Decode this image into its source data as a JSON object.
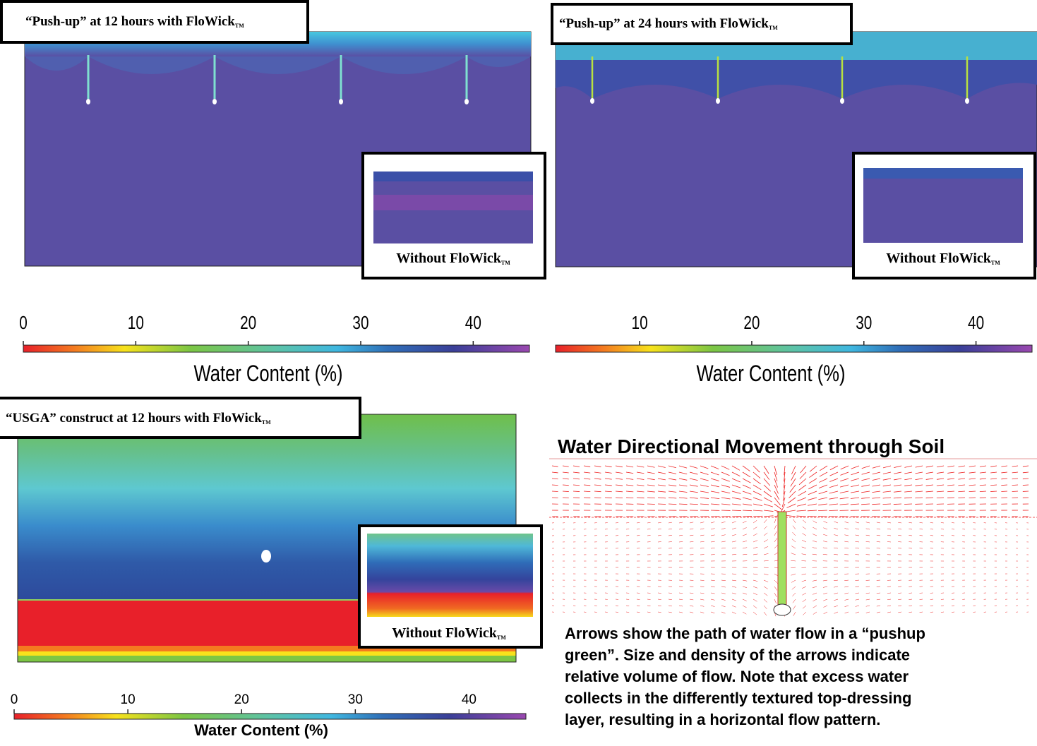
{
  "panels": [
    {
      "title": "“Push-up” at 12 hours with FloWick",
      "title_mark": "TM",
      "inset_label": "Without FloWick",
      "inset_mark": "TM"
    },
    {
      "title": "“Push-up” at 24 hours with FloWick",
      "title_mark": "TM",
      "inset_label": "Without FloWick",
      "inset_mark": "TM"
    },
    {
      "title": "“USGA” construct at 12 hours with FloWick",
      "title_mark": "TM",
      "inset_label": "Without FloWick",
      "inset_mark": "TM"
    }
  ],
  "colorbars": [
    {
      "ticks": [
        0,
        10,
        20,
        30,
        40
      ],
      "lim": [
        0,
        45
      ],
      "label": "Water Content (%)"
    },
    {
      "ticks": [
        10,
        20,
        30,
        40
      ],
      "lim": [
        2.5,
        45
      ],
      "label": "Water Content (%)"
    },
    {
      "ticks": [
        0,
        10,
        20,
        30,
        40
      ],
      "lim": [
        0,
        45
      ],
      "label": "Water Content (%)"
    }
  ],
  "flow": {
    "title": "Water Directional Movement through Soil",
    "caption": [
      "Arrows show the path of water flow in a “pushup",
      "green”. Size and density of the arrows indicate",
      "relative volume of flow. Note that excess water",
      "collects in the differently textured top-dressing",
      "layer, resulting in a horizontal flow pattern."
    ]
  }
}
